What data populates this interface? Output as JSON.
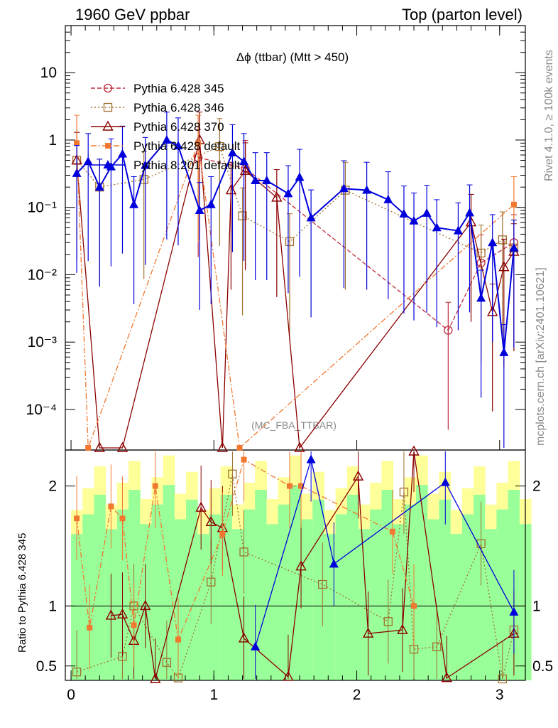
{
  "header": {
    "left": "1960 GeV ppbar",
    "right": "Top (parton level)"
  },
  "side_labels": {
    "rivet": "Rivet 4.1.0, ≥ 100k events",
    "mcplots": "mcplots.cern.ch [arXiv:2401.10621]"
  },
  "chart_data": {
    "type": "line",
    "title": "Δϕ (ttbar) (Mtt > 450)",
    "analysis_tag": "(MC_FBA_TTBAR)",
    "xlabel": "",
    "ylabel_main": "",
    "ylabel_ratio": "Ratio to Pythia 6.428 345",
    "xlim": [
      -0.04,
      3.18
    ],
    "ylim_main": [
      2.5e-05,
      50
    ],
    "ylim_ratio": [
      0.38,
      2.3
    ],
    "yscale_main": "log",
    "x_ticks": [
      {
        "value": 0,
        "label": "0"
      },
      {
        "value": 1,
        "label": "1"
      },
      {
        "value": 2,
        "label": "2"
      },
      {
        "value": 3,
        "label": "3"
      }
    ],
    "y_ticks_main": [
      {
        "value": 0.0001,
        "label": "10⁻⁴"
      },
      {
        "value": 0.001,
        "label": "10⁻³"
      },
      {
        "value": 0.01,
        "label": "10⁻²"
      },
      {
        "value": 0.1,
        "label": "10⁻¹"
      },
      {
        "value": 1,
        "label": "1"
      },
      {
        "value": 10,
        "label": "10"
      }
    ],
    "y_ticks_ratio": [
      {
        "value": 0.5,
        "label": "0.5"
      },
      {
        "value": 1,
        "label": "1"
      },
      {
        "value": 2,
        "label": "2"
      }
    ],
    "legend_position": "top-left",
    "series": [
      {
        "name": "Pythia 6.428 345",
        "color": "#c0283c",
        "marker": "circle-open",
        "dash": "dashed",
        "points": [
          [
            0.89,
            0.55
          ],
          [
            1.22,
            0.38
          ],
          [
            2.64,
            0.0015
          ],
          [
            2.87,
            0.015
          ],
          [
            3.1,
            0.03
          ]
        ]
      },
      {
        "name": "Pythia 6.428 346",
        "color": "#a0702e",
        "marker": "square-open",
        "dash": "dotted",
        "points": [
          [
            0.04,
            0.5
          ],
          [
            0.2,
            0.2
          ],
          [
            0.51,
            0.26
          ],
          [
            1.04,
            0.8
          ],
          [
            1.2,
            0.075
          ],
          [
            1.53,
            0.031
          ],
          [
            1.92,
            0.18
          ],
          [
            2.87,
            0.021
          ],
          [
            3.02,
            0.033
          ],
          [
            3.1,
            0.025
          ]
        ]
      },
      {
        "name": "Pythia 6.428 370",
        "color": "#8b0000",
        "marker": "triangle-open",
        "dash": "solid",
        "points": [
          [
            0.04,
            0.5
          ],
          [
            0.2,
            2e-05
          ],
          [
            0.36,
            2e-05
          ],
          [
            0.9,
            1.0
          ],
          [
            1.06,
            2e-05
          ],
          [
            1.12,
            0.18
          ],
          [
            1.22,
            0.35
          ],
          [
            1.44,
            0.14
          ],
          [
            1.6,
            2e-05
          ],
          [
            2.8,
            0.06
          ],
          [
            2.95,
            0.0028
          ],
          [
            3.03,
            0.013
          ],
          [
            3.1,
            0.022
          ]
        ]
      },
      {
        "name": "Pythia 6.428 default",
        "color": "#f07830",
        "marker": "square-filled",
        "dash": "dashdot",
        "points": [
          [
            0.04,
            0.9
          ],
          [
            0.12,
            2e-05
          ],
          [
            0.89,
            0.9
          ],
          [
            1.18,
            2e-05
          ],
          [
            3.1,
            0.11
          ]
        ]
      },
      {
        "name": "Pythia 8.201 default",
        "color": "#0000dd",
        "marker": "triangle-filled",
        "dash": "solid",
        "points": [
          [
            0.04,
            0.32
          ],
          [
            0.12,
            0.48
          ],
          [
            0.2,
            0.2
          ],
          [
            0.28,
            0.4
          ],
          [
            0.36,
            0.62
          ],
          [
            0.44,
            0.11
          ],
          [
            0.52,
            0.42
          ],
          [
            0.67,
            1.0
          ],
          [
            0.75,
            0.82
          ],
          [
            0.9,
            0.09
          ],
          [
            0.98,
            0.11
          ],
          [
            1.13,
            0.65
          ],
          [
            1.21,
            0.48
          ],
          [
            1.29,
            0.25
          ],
          [
            1.37,
            0.25
          ],
          [
            1.52,
            0.16
          ],
          [
            1.6,
            0.28
          ],
          [
            1.68,
            0.07
          ],
          [
            1.91,
            0.19
          ],
          [
            2.07,
            0.18
          ],
          [
            2.22,
            0.13
          ],
          [
            2.33,
            0.08
          ],
          [
            2.4,
            0.063
          ],
          [
            2.49,
            0.082
          ],
          [
            2.56,
            0.05
          ],
          [
            2.71,
            0.045
          ],
          [
            2.79,
            0.083
          ],
          [
            2.87,
            0.0045
          ],
          [
            2.95,
            0.03
          ],
          [
            3.03,
            0.0007
          ],
          [
            3.1,
            0.025
          ]
        ]
      }
    ],
    "ratio_series": [
      {
        "name": "Pythia 6.428 346",
        "points": [
          [
            0.04,
            0.45
          ],
          [
            0.36,
            0.58
          ],
          [
            0.44,
            1.0
          ],
          [
            0.67,
            0.53
          ],
          [
            0.75,
            0.4
          ],
          [
            0.98,
            1.2
          ],
          [
            1.13,
            2.1
          ],
          [
            1.21,
            1.45
          ],
          [
            1.76,
            1.18
          ],
          [
            2.22,
            0.87
          ],
          [
            2.33,
            1.95
          ],
          [
            2.4,
            0.64
          ],
          [
            2.56,
            0.66
          ],
          [
            2.87,
            1.52
          ],
          [
            3.02,
            0.35
          ],
          [
            3.1,
            0.8
          ]
        ]
      },
      {
        "name": "Pythia 6.428 370",
        "points": [
          [
            0.28,
            0.92
          ],
          [
            0.36,
            0.93
          ],
          [
            0.44,
            0.71
          ],
          [
            0.52,
            1.0
          ],
          [
            0.59,
            0.38
          ],
          [
            0.91,
            1.82
          ],
          [
            0.98,
            1.7
          ],
          [
            1.06,
            1.65
          ],
          [
            1.21,
            0.73
          ],
          [
            1.52,
            0.41
          ],
          [
            1.61,
            1.33
          ],
          [
            2.01,
            2.08
          ],
          [
            2.08,
            0.77
          ],
          [
            2.32,
            0.8
          ],
          [
            2.4,
            2.3
          ],
          [
            2.63,
            0.4
          ],
          [
            3.1,
            0.77
          ]
        ]
      },
      {
        "name": "Pythia 6.428 default",
        "points": [
          [
            0.04,
            1.73
          ],
          [
            0.13,
            0.82
          ],
          [
            0.28,
            1.83
          ],
          [
            0.36,
            1.73
          ],
          [
            0.44,
            0.84
          ],
          [
            0.59,
            2.0
          ],
          [
            0.75,
            0.72
          ],
          [
            1.06,
            1.6
          ],
          [
            1.21,
            2.22
          ],
          [
            1.53,
            2.0
          ],
          [
            1.61,
            2.0
          ],
          [
            2.25,
            1.62
          ],
          [
            2.4,
            1.0
          ]
        ]
      },
      {
        "name": "Pythia 8.201 default",
        "points": [
          [
            1.29,
            0.66
          ],
          [
            1.68,
            2.22
          ],
          [
            1.84,
            1.35
          ],
          [
            2.62,
            2.03
          ],
          [
            3.1,
            0.95
          ]
        ]
      }
    ]
  }
}
